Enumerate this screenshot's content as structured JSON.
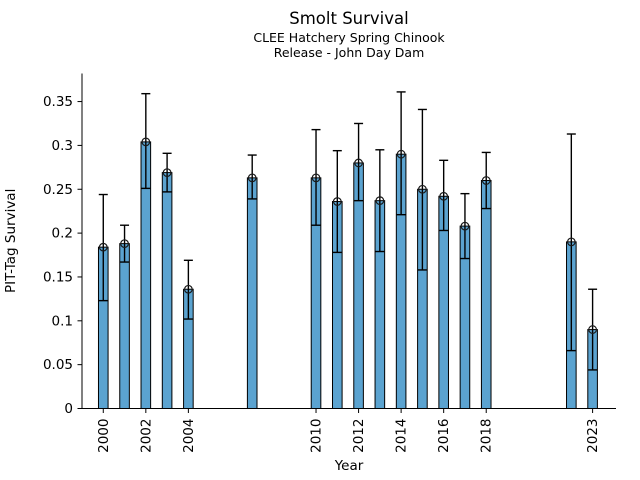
{
  "chart_data": {
    "type": "bar",
    "title": "Smolt Survival",
    "subtitle1": "CLEE Hatchery Spring Chinook",
    "subtitle2": "Release - John Day Dam",
    "xlabel": "Year",
    "ylabel": "PIT-Tag Survival",
    "categories": [
      2000,
      2001,
      2002,
      2003,
      2004,
      2007,
      2010,
      2011,
      2012,
      2013,
      2014,
      2015,
      2016,
      2017,
      2018,
      2022,
      2023
    ],
    "values": [
      0.184,
      0.188,
      0.304,
      0.269,
      0.136,
      0.263,
      0.263,
      0.236,
      0.28,
      0.237,
      0.29,
      0.25,
      0.242,
      0.208,
      0.26,
      0.19,
      0.09
    ],
    "error_low": [
      0.123,
      0.167,
      0.251,
      0.247,
      0.102,
      0.239,
      0.209,
      0.178,
      0.237,
      0.179,
      0.221,
      0.158,
      0.203,
      0.171,
      0.228,
      0.066,
      0.044
    ],
    "error_high": [
      0.244,
      0.209,
      0.359,
      0.291,
      0.169,
      0.289,
      0.318,
      0.294,
      0.325,
      0.295,
      0.361,
      0.341,
      0.283,
      0.245,
      0.292,
      0.313,
      0.136
    ],
    "xticks": [
      2000,
      2002,
      2004,
      2010,
      2012,
      2014,
      2016,
      2018,
      2023
    ],
    "xtick_labels": [
      "2000",
      "2002",
      "2004",
      "2010",
      "2012",
      "2014",
      "2016",
      "2018",
      "2023"
    ],
    "xtick_rotation": 90,
    "yticks": [
      0,
      0.05,
      0.1,
      0.15,
      0.2,
      0.25,
      0.3,
      0.35
    ],
    "ytick_labels": [
      "0",
      "0.05",
      "0.1",
      "0.15",
      "0.2",
      "0.25",
      "0.3",
      "0.35"
    ],
    "xlim": [
      1999.0,
      2024.1
    ],
    "ylim": [
      0,
      0.382
    ],
    "grid": false,
    "legend": null,
    "error_bars": true,
    "marker": "open-circle",
    "bar_color": "#5BA3D0",
    "bar_edge_color": "#000000",
    "error_bar_color": "#000000",
    "marker_color": "#1a1a1a",
    "axis_color": "#000000",
    "background": "#FFFFFF"
  }
}
